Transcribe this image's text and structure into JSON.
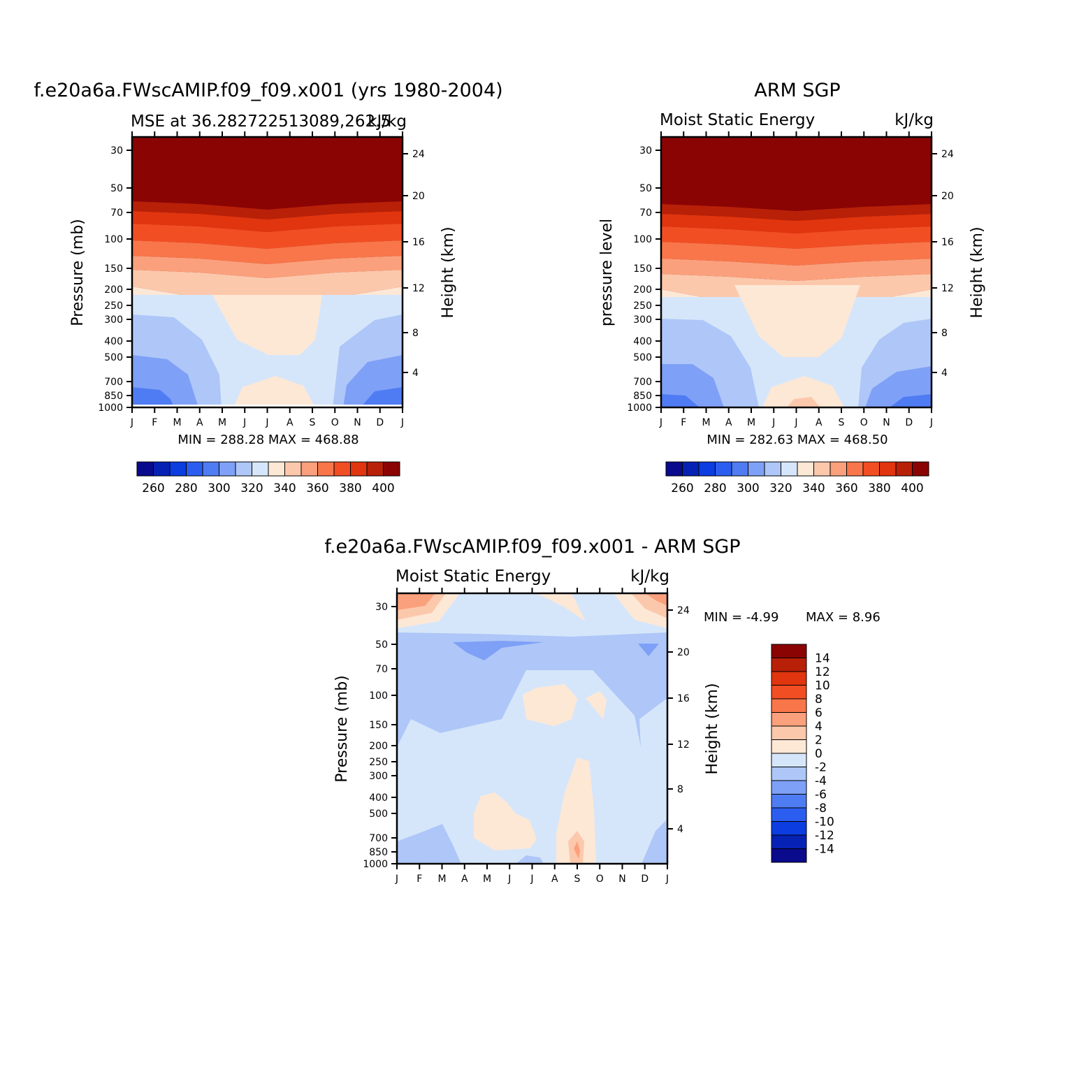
{
  "palette": [
    "#0a0a8c",
    "#0522b4",
    "#0b3de0",
    "#2b5ef0",
    "#4f7cf3",
    "#7ea0f6",
    "#aec7f8",
    "#d6e6fa",
    "#fde8d6",
    "#fcc8ac",
    "#fba07c",
    "#f8764a",
    "#f24e24",
    "#e0350f",
    "#b82008",
    "#8a0404"
  ],
  "chart_data": [
    {
      "type": "heatmap",
      "title": "f.e20a6a.FWscAMIP.f09_f09.x001 (yrs 1980-2004)",
      "subtitle_left": "MSE at 36.282722513089,262.5",
      "subtitle_right": "kJ/kg",
      "ylabel_left": "Pressure (mb)",
      "ylabel_right": "Height (km)",
      "x_ticks": [
        "J",
        "F",
        "M",
        "A",
        "M",
        "J",
        "J",
        "A",
        "S",
        "O",
        "N",
        "D",
        "J"
      ],
      "y_ticks": [
        "30",
        "50",
        "70",
        "100",
        "150",
        "200",
        "250",
        "300",
        "400",
        "500",
        "700",
        "850",
        "1000"
      ],
      "height_ticks": [
        "24",
        "20",
        "16",
        "12",
        "8",
        "4"
      ],
      "stats": "MIN = 288.28 MAX = 468.88",
      "colorbar_labels": [
        "260",
        "280",
        "300",
        "320",
        "340",
        "360",
        "380",
        "400"
      ],
      "levels": [
        250,
        260,
        270,
        280,
        290,
        300,
        310,
        320,
        330,
        340,
        350,
        360,
        370,
        380,
        390,
        400
      ]
    },
    {
      "type": "heatmap",
      "title": "ARM SGP",
      "subtitle_left": "Moist Static Energy",
      "subtitle_right": "kJ/kg",
      "ylabel_left": "pressure level",
      "ylabel_right": "Height (km)",
      "x_ticks": [
        "J",
        "F",
        "M",
        "A",
        "M",
        "J",
        "J",
        "A",
        "S",
        "O",
        "N",
        "D",
        "J"
      ],
      "y_ticks": [
        "30",
        "50",
        "70",
        "100",
        "150",
        "200",
        "250",
        "300",
        "400",
        "500",
        "700",
        "850",
        "1000"
      ],
      "height_ticks": [
        "24",
        "20",
        "16",
        "12",
        "8",
        "4"
      ],
      "stats": "MIN = 282.63 MAX = 468.50",
      "colorbar_labels": [
        "260",
        "280",
        "300",
        "320",
        "340",
        "360",
        "380",
        "400"
      ],
      "levels": [
        250,
        260,
        270,
        280,
        290,
        300,
        310,
        320,
        330,
        340,
        350,
        360,
        370,
        380,
        390,
        400
      ]
    },
    {
      "type": "heatmap",
      "title": "f.e20a6a.FWscAMIP.f09_f09.x001 - ARM SGP",
      "subtitle_left": "Moist Static Energy",
      "subtitle_right": "kJ/kg",
      "ylabel_left": "Pressure (mb)",
      "ylabel_right": "Height (km)",
      "x_ticks": [
        "J",
        "F",
        "M",
        "A",
        "M",
        "J",
        "J",
        "A",
        "S",
        "O",
        "N",
        "D",
        "J"
      ],
      "y_ticks": [
        "30",
        "50",
        "70",
        "100",
        "150",
        "200",
        "250",
        "300",
        "400",
        "500",
        "700",
        "850",
        "1000"
      ],
      "height_ticks": [
        "24",
        "20",
        "16",
        "12",
        "8",
        "4"
      ],
      "stats_min": "MIN = -4.99",
      "stats_max": "MAX = 8.96",
      "colorbar_labels": [
        "14",
        "12",
        "10",
        "8",
        "6",
        "4",
        "2",
        "0",
        "-2",
        "-4",
        "-6",
        "-8",
        "-10",
        "-12",
        "-14"
      ],
      "levels": [
        -16,
        -14,
        -12,
        -10,
        -8,
        -6,
        -4,
        -2,
        0,
        2,
        4,
        6,
        8,
        10,
        12,
        14
      ]
    }
  ]
}
